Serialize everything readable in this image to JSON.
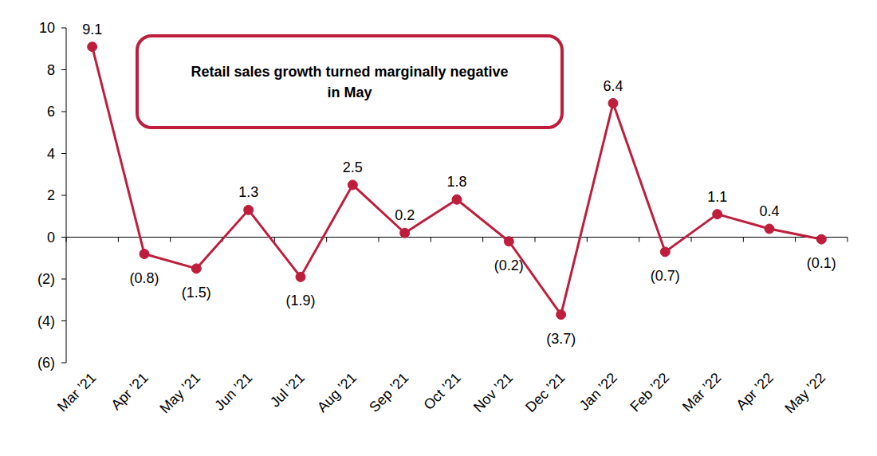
{
  "chart_data": {
    "type": "line",
    "annotation": "Retail sales growth turned marginally negative in May",
    "categories": [
      "Mar ’21",
      "Apr ’21",
      "May ’21",
      "Jun ’21",
      "Jul ’21",
      "Aug ’21",
      "Sep ’21",
      "Oct ’21",
      "Nov ’21",
      "Dec ’21",
      "Jan ’22",
      "Feb ’22",
      "Mar ’22",
      "Apr ’22",
      "May ’22"
    ],
    "values": [
      9.1,
      -0.8,
      -1.5,
      1.3,
      -1.9,
      2.5,
      0.2,
      1.8,
      -0.2,
      -3.7,
      6.4,
      -0.7,
      1.1,
      0.4,
      -0.1
    ],
    "value_labels": [
      "9.1",
      "(0.8)",
      "(1.5)",
      "1.3",
      "(1.9)",
      "2.5",
      "0.2",
      "1.8",
      "(0.2)",
      "(3.7)",
      "6.4",
      "(0.7)",
      "1.1",
      "0.4",
      "(0.1)"
    ],
    "color": "#be1e3c",
    "marker": "circle",
    "data_labels": true,
    "grid": false,
    "ylim": [
      -6,
      10
    ],
    "yticks": [
      {
        "value": -6,
        "label": "(6)"
      },
      {
        "value": -4,
        "label": "(4)"
      },
      {
        "value": -2,
        "label": "(2)"
      },
      0,
      2,
      4,
      6,
      8,
      10
    ]
  }
}
